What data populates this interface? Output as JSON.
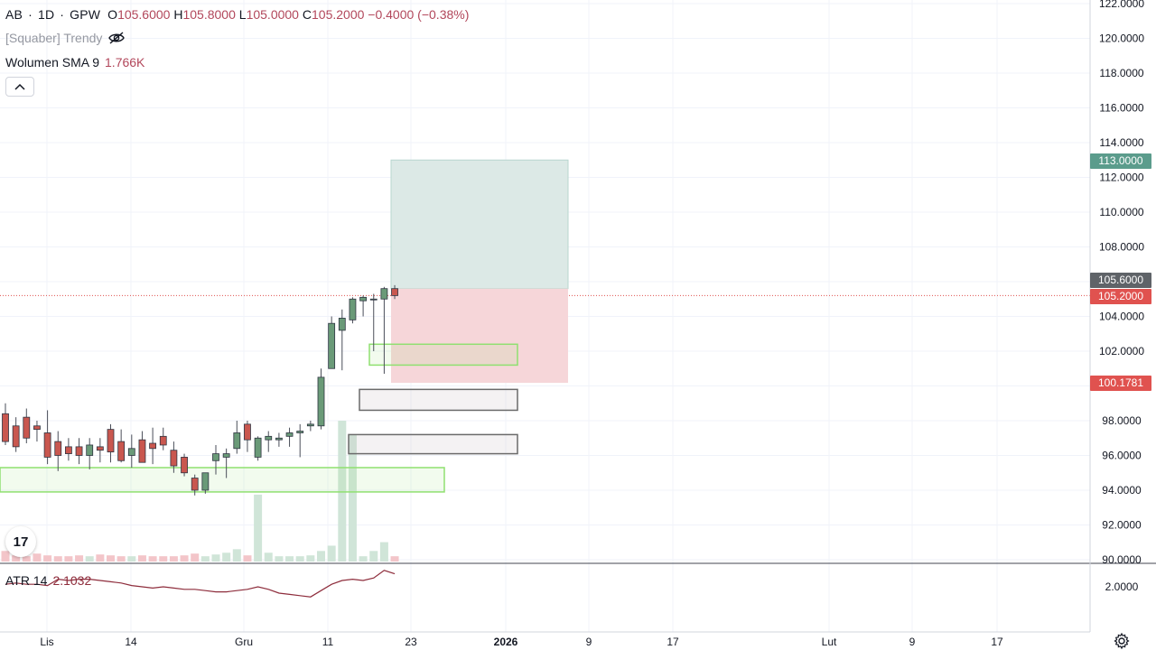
{
  "header": {
    "symbol": "AB",
    "dot": "·",
    "timeframe": "1D",
    "exchange": "GPW",
    "ohlc": {
      "o_key": "O",
      "o": "105.6000",
      "h_key": "H",
      "h": "105.8000",
      "l_key": "L",
      "l": "105.0000",
      "c_key": "C",
      "c": "105.2000",
      "change": "−0.4000 (−0.38%)"
    },
    "indicator1": "[Squaber] Trendy",
    "indicator2_name": "Wolumen SMA 9",
    "indicator2_value": "1.766K"
  },
  "atr": {
    "name": "ATR 14",
    "value": "2.1032"
  },
  "logo": "17",
  "badges": {
    "target": "113.0000",
    "open": "105.6000",
    "close": "105.2000",
    "stop": "100.1781"
  },
  "colors": {
    "up": "#6a9a78",
    "down": "#c9574f",
    "wick": "#4a4e59",
    "target_fill": "#dce9e6",
    "stop_fill": "#f6d6d9",
    "zone_green": "#90e070",
    "zone_gray": "#6a6a6a",
    "vol_up": "#d0e5d8",
    "vol_down": "#f3c5c9",
    "atr_line": "#8e2d3c"
  },
  "chart_data": {
    "type": "candlestick",
    "price_axis": {
      "ticks": [
        "122.0000",
        "120.0000",
        "118.0000",
        "116.0000",
        "114.0000",
        "112.0000",
        "110.0000",
        "108.0000",
        "106.0000",
        "104.0000",
        "102.0000",
        "100.0000",
        "98.0000",
        "96.0000",
        "94.0000",
        "92.0000",
        "90.0000"
      ],
      "range": [
        90,
        122
      ]
    },
    "atr_axis": {
      "ticks": [
        "2.0000"
      ]
    },
    "time_axis": {
      "labels": [
        "Lis",
        "14",
        "Gru",
        "11",
        "23",
        "2026",
        "9",
        "17",
        "Lut",
        "9",
        "17"
      ]
    },
    "candles": [
      {
        "o": 98.4,
        "h": 99.0,
        "l": 96.6,
        "c": 96.8
      },
      {
        "o": 97.7,
        "h": 98.2,
        "l": 96.2,
        "c": 96.5
      },
      {
        "o": 98.2,
        "h": 98.7,
        "l": 96.7,
        "c": 97.0
      },
      {
        "o": 97.7,
        "h": 98.0,
        "l": 96.8,
        "c": 97.5
      },
      {
        "o": 97.3,
        "h": 98.6,
        "l": 95.5,
        "c": 95.9
      },
      {
        "o": 96.8,
        "h": 97.4,
        "l": 95.1,
        "c": 96.0
      },
      {
        "o": 96.5,
        "h": 97.0,
        "l": 95.7,
        "c": 96.1
      },
      {
        "o": 96.5,
        "h": 97.0,
        "l": 95.5,
        "c": 96.0
      },
      {
        "o": 96.0,
        "h": 97.0,
        "l": 95.2,
        "c": 96.6
      },
      {
        "o": 96.5,
        "h": 97.0,
        "l": 95.6,
        "c": 96.3
      },
      {
        "o": 97.5,
        "h": 97.8,
        "l": 95.6,
        "c": 96.2
      },
      {
        "o": 96.8,
        "h": 97.5,
        "l": 95.6,
        "c": 95.7
      },
      {
        "o": 96.0,
        "h": 97.2,
        "l": 95.3,
        "c": 96.4
      },
      {
        "o": 96.9,
        "h": 97.4,
        "l": 95.6,
        "c": 95.6
      },
      {
        "o": 96.7,
        "h": 97.6,
        "l": 95.5,
        "c": 96.4
      },
      {
        "o": 97.1,
        "h": 97.6,
        "l": 96.3,
        "c": 96.6
      },
      {
        "o": 96.3,
        "h": 96.8,
        "l": 95.0,
        "c": 95.4
      },
      {
        "o": 95.9,
        "h": 96.1,
        "l": 94.8,
        "c": 95.0
      },
      {
        "o": 94.7,
        "h": 94.9,
        "l": 93.7,
        "c": 94.0
      },
      {
        "o": 94.0,
        "h": 95.0,
        "l": 93.8,
        "c": 95.0
      },
      {
        "o": 95.7,
        "h": 96.6,
        "l": 94.9,
        "c": 96.1
      },
      {
        "o": 95.9,
        "h": 96.4,
        "l": 94.7,
        "c": 96.1
      },
      {
        "o": 96.4,
        "h": 98.0,
        "l": 96.1,
        "c": 97.3
      },
      {
        "o": 97.8,
        "h": 98.0,
        "l": 96.2,
        "c": 96.9
      },
      {
        "o": 95.9,
        "h": 97.1,
        "l": 95.7,
        "c": 97.0
      },
      {
        "o": 96.9,
        "h": 97.4,
        "l": 96.2,
        "c": 97.1
      },
      {
        "o": 96.9,
        "h": 97.3,
        "l": 96.5,
        "c": 97.0
      },
      {
        "o": 97.1,
        "h": 97.6,
        "l": 96.5,
        "c": 97.3
      },
      {
        "o": 97.3,
        "h": 97.8,
        "l": 95.9,
        "c": 97.4
      },
      {
        "o": 97.7,
        "h": 98.0,
        "l": 97.4,
        "c": 97.8
      },
      {
        "o": 97.7,
        "h": 101.0,
        "l": 97.5,
        "c": 100.5
      },
      {
        "o": 101.0,
        "h": 104.0,
        "l": 101.0,
        "c": 103.6
      },
      {
        "o": 103.2,
        "h": 104.4,
        "l": 100.9,
        "c": 103.9
      },
      {
        "o": 103.8,
        "h": 105.1,
        "l": 103.6,
        "c": 105.0
      },
      {
        "o": 104.9,
        "h": 105.2,
        "l": 104.0,
        "c": 105.1
      },
      {
        "o": 105.0,
        "h": 105.3,
        "l": 102.0,
        "c": 105.0
      },
      {
        "o": 105.0,
        "h": 105.7,
        "l": 100.7,
        "c": 105.6
      },
      {
        "o": 105.6,
        "h": 105.8,
        "l": 105.0,
        "c": 105.2
      }
    ],
    "volume": [
      0.6,
      0.35,
      0.3,
      0.45,
      0.35,
      0.3,
      0.3,
      0.35,
      0.3,
      0.4,
      0.35,
      0.3,
      0.3,
      0.35,
      0.3,
      0.3,
      0.3,
      0.35,
      0.45,
      0.3,
      0.4,
      0.5,
      0.7,
      0.35,
      3.8,
      0.5,
      0.3,
      0.3,
      0.3,
      0.35,
      0.6,
      0.9,
      8.0,
      7.2,
      0.3,
      0.6,
      1.1,
      0.3
    ],
    "atr_values": [
      2.02,
      2.03,
      2.02,
      2.02,
      2.01,
      2.06,
      2.05,
      2.06,
      2.06,
      2.05,
      2.04,
      2.03,
      2.01,
      2.0,
      1.99,
      2.0,
      1.99,
      1.98,
      1.98,
      1.97,
      1.96,
      1.96,
      1.97,
      1.98,
      2.0,
      1.98,
      1.95,
      1.94,
      1.93,
      1.92,
      1.97,
      2.02,
      2.05,
      2.06,
      2.05,
      2.07,
      2.13,
      2.1032
    ],
    "zones": [
      {
        "type": "support",
        "top": 95.3,
        "bottom": 93.9
      },
      {
        "type": "support",
        "top": 102.4,
        "bottom": 101.2
      },
      {
        "type": "neutral",
        "top": 99.8,
        "bottom": 98.6
      },
      {
        "type": "neutral",
        "top": 97.2,
        "bottom": 96.1
      }
    ],
    "position": {
      "entry": 105.6,
      "target": 113.0,
      "stop": 100.1781
    }
  }
}
